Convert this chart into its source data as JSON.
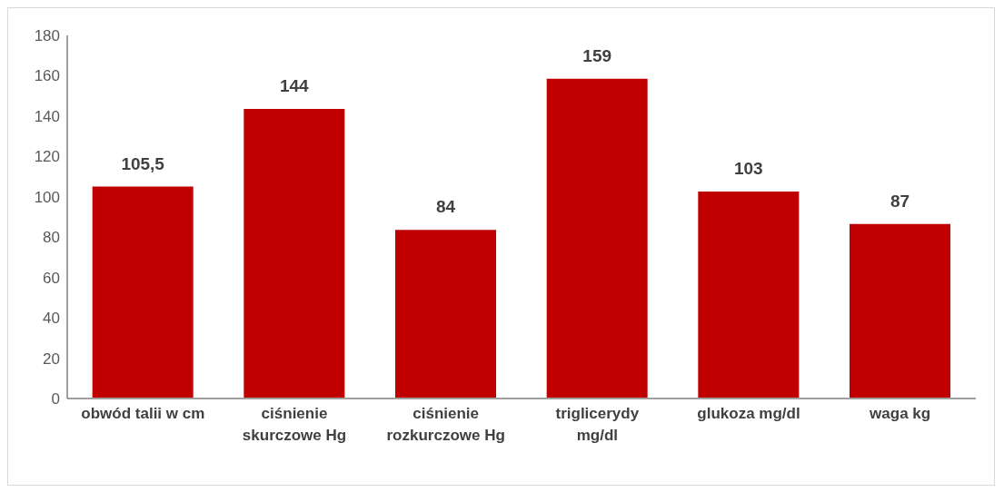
{
  "chart_data": {
    "type": "bar",
    "categories": [
      "obwód talii w cm",
      "ciśnienie skurczowe Hg",
      "ciśnienie rozkurczowe Hg",
      "triglicerydy mg/dl",
      "glukoza mg/dl",
      "waga kg"
    ],
    "values": [
      105.5,
      144,
      84,
      159,
      103,
      87
    ],
    "value_labels": [
      "105,5",
      "144",
      "84",
      "159",
      "103",
      "87"
    ],
    "color": "#c00000",
    "ylim": [
      0,
      180
    ],
    "yticks": [
      0,
      20,
      40,
      60,
      80,
      100,
      120,
      140,
      160,
      180
    ],
    "grid": false,
    "legend": false
  }
}
